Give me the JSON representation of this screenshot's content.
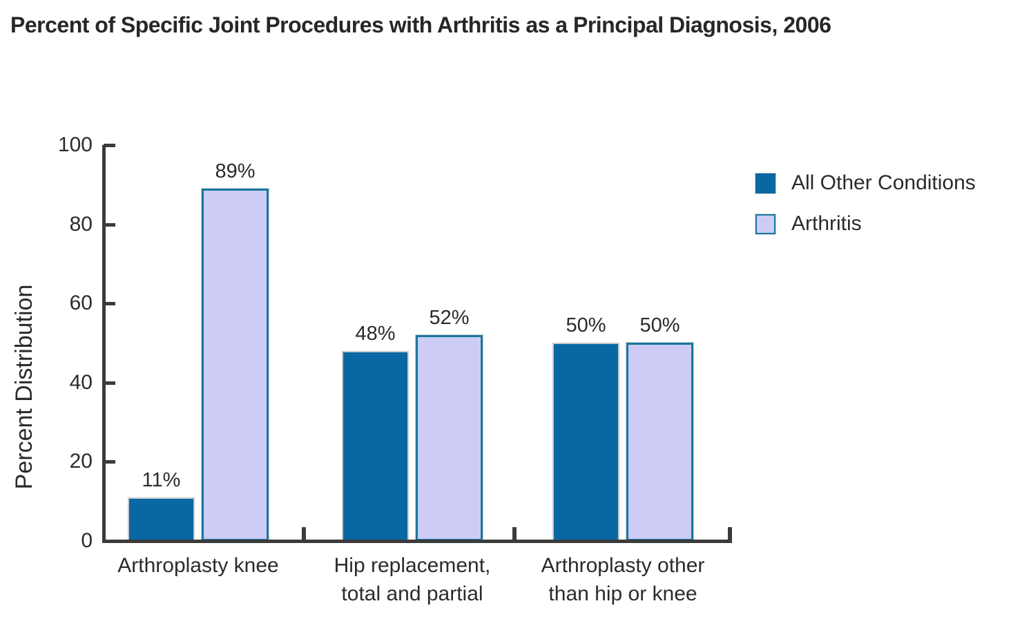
{
  "title": "Percent of Specific Joint Procedures with Arthritis as a Principal Diagnosis, 2006",
  "colors": {
    "bar_dark": "#0968a3",
    "bar_light": "#ccccf7",
    "bar_light_border": "#18789b",
    "axis": "#3b3b3b",
    "text": "#2b2b2b"
  },
  "chart_data": {
    "type": "bar",
    "title": "Percent of Specific Joint Procedures with Arthritis as a Principal Diagnosis, 2006",
    "xlabel": "",
    "ylabel": "Percent Distribution",
    "ylim": [
      0,
      100
    ],
    "yticks": [
      0,
      20,
      40,
      60,
      80,
      100
    ],
    "grid": false,
    "legend_position": "top-right",
    "categories": [
      "Arthroplasty knee",
      "Hip replacement,\ntotal and partial",
      "Arthroplasty other\nthan hip or knee"
    ],
    "series": [
      {
        "name": "All Other Conditions",
        "values": [
          11,
          48,
          50
        ],
        "labels": [
          "11%",
          "48%",
          "50%"
        ],
        "color": "#0968a3"
      },
      {
        "name": "Arthritis",
        "values": [
          89,
          52,
          50
        ],
        "labels": [
          "89%",
          "52%",
          "50%"
        ],
        "color": "#ccccf7",
        "border_color": "#18789b"
      }
    ]
  }
}
